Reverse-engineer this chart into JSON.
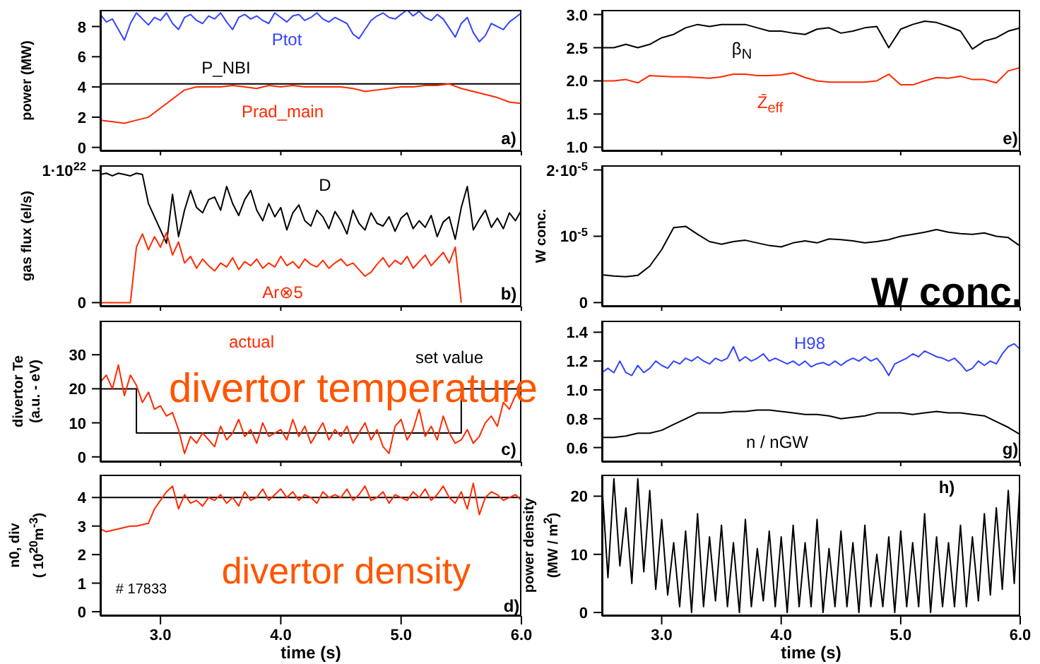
{
  "chart_data": [
    {
      "type": "line",
      "ylabel": "power (MW)",
      "x": [
        2.5,
        2.55,
        2.6,
        2.65,
        2.7,
        2.75,
        2.8,
        2.85,
        2.9,
        2.95,
        3.0,
        3.05,
        3.1,
        3.15,
        3.2,
        3.25,
        3.3,
        3.35,
        3.4,
        3.45,
        3.5,
        3.55,
        3.6,
        3.65,
        3.7,
        3.75,
        3.8,
        3.85,
        3.9,
        3.95,
        4.0,
        4.05,
        4.1,
        4.15,
        4.2,
        4.25,
        4.3,
        4.35,
        4.4,
        4.45,
        4.5,
        4.55,
        4.6,
        4.65,
        4.7,
        4.75,
        4.8,
        4.85,
        4.9,
        4.95,
        5.0,
        5.05,
        5.1,
        5.15,
        5.2,
        5.25,
        5.3,
        5.35,
        5.4,
        5.45,
        5.5,
        5.55,
        5.6,
        5.65,
        5.7,
        5.75,
        5.8,
        5.85,
        5.9,
        5.95,
        6.0
      ],
      "xlim": [
        2.5,
        6.0
      ],
      "xticks": [
        3,
        4,
        5,
        6
      ],
      "ylim": [
        -0.25,
        9.1
      ],
      "yticks": [
        0,
        2,
        4,
        6,
        8
      ],
      "tick_labels": "y",
      "annotations": [
        "a)"
      ],
      "series": [
        {
          "name": "Ptot",
          "color": "#3344ff",
          "values": [
            8.8,
            8.3,
            8.5,
            7.8,
            7.1,
            8.2,
            8.9,
            8.5,
            8.1,
            8.6,
            8.4,
            8.9,
            8.2,
            7.8,
            8.6,
            8.8,
            8.4,
            8.2,
            8.7,
            8.5,
            8.9,
            8.3,
            7.8,
            8.6,
            8.8,
            8.5,
            8.7,
            8.4,
            8.2,
            8.9,
            8.6,
            8.3,
            8.7,
            8.8,
            8.4,
            8.6,
            8.9,
            8.5,
            8.3,
            8.6,
            8.4,
            8.2,
            7.5,
            7.2,
            7.8,
            8.4,
            8.7,
            8.9,
            8.6,
            8.5,
            8.8,
            9.1,
            8.7,
            9.0,
            8.6,
            8.4,
            8.8,
            8.5,
            7.9,
            7.3,
            8.2,
            8.6,
            7.6,
            7.0,
            7.4,
            8.2,
            8.0,
            7.8,
            8.3,
            8.6,
            8.9
          ]
        },
        {
          "name": "P_NBI",
          "color": "#000000",
          "x": [
            2.5,
            6.0
          ],
          "values": [
            4.2,
            4.2
          ]
        },
        {
          "name": "Prad_main",
          "color": "#ff2a00",
          "x": [
            2.5,
            2.6,
            2.7,
            2.8,
            2.9,
            3.0,
            3.1,
            3.2,
            3.3,
            3.4,
            3.5,
            3.6,
            3.7,
            3.8,
            3.9,
            4.0,
            4.1,
            4.2,
            4.3,
            4.4,
            4.5,
            4.6,
            4.7,
            4.8,
            4.9,
            5.0,
            5.1,
            5.2,
            5.3,
            5.4,
            5.5,
            5.6,
            5.7,
            5.8,
            5.9,
            6.0
          ],
          "values": [
            1.8,
            1.7,
            1.6,
            1.8,
            2.0,
            2.6,
            3.2,
            3.8,
            4.0,
            4.0,
            4.0,
            4.1,
            4.0,
            3.9,
            4.1,
            4.0,
            4.1,
            4.0,
            4.0,
            4.0,
            4.0,
            3.9,
            3.7,
            3.8,
            3.9,
            4.0,
            4.0,
            4.1,
            4.1,
            4.2,
            3.9,
            3.7,
            3.5,
            3.3,
            3.0,
            2.9
          ]
        }
      ]
    },
    {
      "type": "line",
      "ylabel": "gas flux (el/s)",
      "x": [
        2.5,
        2.55,
        2.6,
        2.65,
        2.7,
        2.75,
        2.8,
        2.85,
        2.9,
        2.95,
        3.0,
        3.05,
        3.1,
        3.15,
        3.2,
        3.25,
        3.3,
        3.35,
        3.4,
        3.45,
        3.5,
        3.55,
        3.6,
        3.65,
        3.7,
        3.75,
        3.8,
        3.85,
        3.9,
        3.95,
        4.0,
        4.05,
        4.1,
        4.15,
        4.2,
        4.25,
        4.3,
        4.35,
        4.4,
        4.45,
        4.5,
        4.55,
        4.6,
        4.65,
        4.7,
        4.75,
        4.8,
        4.85,
        4.9,
        4.95,
        5.0,
        5.05,
        5.1,
        5.15,
        5.2,
        5.25,
        5.3,
        5.35,
        5.4,
        5.45,
        5.5,
        5.55,
        5.6,
        5.65,
        5.7,
        5.75,
        5.8,
        5.85,
        5.9,
        5.95,
        6.0
      ],
      "xlim": [
        2.5,
        6.0
      ],
      "xticks": [
        3,
        4,
        5,
        6
      ],
      "ylim": [
        -3e+20,
        1.04e+22
      ],
      "yticks": [
        0,
        {
          "value": 1e+22,
          "label": "1·10$^{22}$"
        }
      ],
      "tick_labels": "y",
      "annotations": [
        "b)"
      ],
      "series": [
        {
          "name": "D",
          "color": "#000000",
          "values": [
            9.7e+21,
            9.8e+21,
            9.6e+21,
            9.8e+21,
            9.7e+21,
            9.6e+21,
            9.8e+21,
            9.7e+21,
            7.5e+21,
            6.5e+21,
            5.5e+21,
            4.5e+21,
            8.2e+21,
            5e+21,
            7e+21,
            8.5e+21,
            7.2e+21,
            6.8e+21,
            7.8e+21,
            8e+21,
            7e+21,
            8.8e+21,
            7.5e+21,
            6.6e+21,
            7.8e+21,
            8.5e+21,
            7e+21,
            6.2e+21,
            7.5e+21,
            6.5e+21,
            7.2e+21,
            5.5e+21,
            6.8e+21,
            7.4e+21,
            6.2e+21,
            5.8e+21,
            7e+21,
            6.5e+21,
            5.6e+21,
            6.9e+21,
            6.2e+21,
            5.2e+21,
            7e+21,
            6e+21,
            5.5e+21,
            6.8e+21,
            6e+21,
            5.8e+21,
            6.5e+21,
            5.4e+21,
            6.4e+21,
            6.8e+21,
            5.6e+21,
            6.2e+21,
            5.7e+21,
            6.6e+21,
            5e+21,
            6.1e+21,
            6.5e+21,
            4.8e+21,
            7.2e+21,
            8.8e+21,
            5.5e+21,
            6.3e+21,
            7e+21,
            5.7e+21,
            6.4e+21,
            5.6e+21,
            6.8e+21,
            6.2e+21,
            7e+21
          ]
        },
        {
          "name": "Ar⊗5",
          "color": "#ff2a00",
          "values": [
            0,
            0,
            0,
            0,
            0,
            0,
            4.2e+21,
            5.2e+21,
            4e+21,
            5e+21,
            4.2e+21,
            5.3e+21,
            3.6e+21,
            4.6e+21,
            3e+21,
            3.5e+21,
            2.6e+21,
            3.3e+21,
            2.8e+21,
            2.4e+21,
            3e+21,
            2.7e+21,
            3.4e+21,
            2.5e+21,
            3.1e+21,
            2.8e+21,
            3.3e+21,
            2.6e+21,
            3e+21,
            2.7e+21,
            3.5e+21,
            2.8e+21,
            3.1e+21,
            2.6e+21,
            3.3e+21,
            2.9e+21,
            2.7e+21,
            3.2e+21,
            2.6e+21,
            3e+21,
            3.3e+21,
            2.8e+21,
            3e+21,
            2.5e+21,
            2e+21,
            2.3e+21,
            2.9e+21,
            3.4e+21,
            2.7e+21,
            3.2e+21,
            2.9e+21,
            3.5e+21,
            2.6e+21,
            3.1e+21,
            3.6e+21,
            2.8e+21,
            3.3e+21,
            3.8e+21,
            3e+21,
            4.2e+21,
            0,
            null,
            null,
            null,
            null,
            null,
            null,
            null,
            null,
            null,
            null
          ]
        }
      ]
    },
    {
      "type": "line",
      "ylabel": "divertor Te\n(a.u. - eV)",
      "x": [
        2.5,
        2.55,
        2.6,
        2.65,
        2.7,
        2.75,
        2.8,
        2.85,
        2.9,
        2.95,
        3.0,
        3.05,
        3.1,
        3.15,
        3.2,
        3.25,
        3.3,
        3.35,
        3.4,
        3.45,
        3.5,
        3.55,
        3.6,
        3.65,
        3.7,
        3.75,
        3.8,
        3.85,
        3.9,
        3.95,
        4.0,
        4.05,
        4.1,
        4.15,
        4.2,
        4.25,
        4.3,
        4.35,
        4.4,
        4.45,
        4.5,
        4.55,
        4.6,
        4.65,
        4.7,
        4.75,
        4.8,
        4.85,
        4.9,
        4.95,
        5.0,
        5.05,
        5.1,
        5.15,
        5.2,
        5.25,
        5.3,
        5.35,
        5.4,
        5.45,
        5.5,
        5.55,
        5.6,
        5.65,
        5.7,
        5.75,
        5.8,
        5.85,
        5.9,
        5.95,
        6.0
      ],
      "xlim": [
        2.5,
        6.0
      ],
      "xticks": [
        3,
        4,
        5,
        6
      ],
      "ylim": [
        -1.5,
        40
      ],
      "yticks": [
        0,
        10,
        20,
        30
      ],
      "tick_labels": "y",
      "annotations": [
        "divertor temperature",
        "c)"
      ],
      "series": [
        {
          "name": "set value",
          "color": "#000000",
          "x": [
            2.5,
            2.8,
            2.8,
            5.5,
            5.5,
            6.0
          ],
          "values": [
            20,
            20,
            7,
            7,
            20,
            20
          ]
        },
        {
          "name": "actual",
          "color": "#ff2a00",
          "values": [
            22,
            24,
            20,
            27,
            18,
            24,
            21,
            16,
            19,
            14,
            15,
            12,
            13,
            8,
            1,
            6,
            4,
            7,
            5,
            3,
            9,
            5,
            7,
            11,
            6,
            8,
            4,
            10,
            6,
            7,
            8,
            5,
            11,
            6,
            9,
            4,
            7,
            10,
            5,
            8,
            6,
            9,
            4,
            7,
            10,
            5,
            8,
            3,
            1,
            9,
            11,
            5,
            8,
            14,
            6,
            9,
            5,
            12,
            7,
            4,
            5,
            8,
            4,
            6,
            10,
            12,
            9,
            16,
            14,
            18,
            20
          ]
        }
      ]
    },
    {
      "type": "line",
      "ylabel": "n0, div\n( 10$^{20}$m$^{-3}$)",
      "xlabel": "time (s)",
      "x": [
        2.5,
        2.55,
        2.6,
        2.65,
        2.7,
        2.75,
        2.8,
        2.85,
        2.9,
        2.95,
        3.0,
        3.05,
        3.1,
        3.15,
        3.2,
        3.25,
        3.3,
        3.35,
        3.4,
        3.45,
        3.5,
        3.55,
        3.6,
        3.65,
        3.7,
        3.75,
        3.8,
        3.85,
        3.9,
        3.95,
        4.0,
        4.05,
        4.1,
        4.15,
        4.2,
        4.25,
        4.3,
        4.35,
        4.4,
        4.45,
        4.5,
        4.55,
        4.6,
        4.65,
        4.7,
        4.75,
        4.8,
        4.85,
        4.9,
        4.95,
        5.0,
        5.05,
        5.1,
        5.15,
        5.2,
        5.25,
        5.3,
        5.35,
        5.4,
        5.45,
        5.5,
        5.55,
        5.6,
        5.65,
        5.7,
        5.75,
        5.8,
        5.85,
        5.9,
        5.95,
        6.0
      ],
      "xlim": [
        2.5,
        6.0
      ],
      "xticks": [
        {
          "value": 3.0,
          "label": "3.0"
        },
        {
          "value": 4.0,
          "label": "4.0"
        },
        {
          "value": 5.0,
          "label": "5.0"
        },
        {
          "value": 6.0,
          "label": "6.0"
        }
      ],
      "ylim": [
        -0.15,
        4.8
      ],
      "yticks": [
        0,
        1,
        2,
        3,
        4
      ],
      "annotations": [
        "# 17833",
        "divertor density",
        "d)"
      ],
      "ref_lines": [
        {
          "axis": "y",
          "value": 4,
          "color": "#000000"
        }
      ],
      "series": [
        {
          "color": "#ff2a00",
          "values": [
            2.9,
            2.8,
            2.85,
            2.9,
            2.95,
            3.0,
            3.0,
            3.05,
            3.1,
            3.6,
            3.9,
            4.2,
            4.4,
            3.6,
            4.1,
            3.8,
            3.9,
            3.7,
            4.0,
            3.9,
            4.1,
            3.8,
            4.0,
            3.7,
            4.2,
            3.9,
            4.0,
            4.3,
            3.9,
            4.1,
            4.3,
            4.0,
            4.2,
            3.9,
            4.1,
            4.0,
            3.8,
            4.2,
            4.0,
            4.1,
            4.0,
            4.3,
            3.9,
            4.1,
            4.4,
            3.9,
            4.0,
            4.2,
            3.8,
            4.1,
            4.0,
            3.9,
            4.2,
            4.0,
            4.3,
            3.9,
            4.1,
            4.4,
            4.0,
            3.8,
            4.2,
            3.6,
            4.5,
            3.4,
            4.0,
            4.2,
            4.1,
            3.9,
            4.0,
            4.1,
            3.9
          ]
        }
      ]
    },
    {
      "type": "line",
      "x": [
        2.5,
        2.6,
        2.7,
        2.8,
        2.9,
        3.0,
        3.1,
        3.2,
        3.3,
        3.4,
        3.5,
        3.6,
        3.7,
        3.8,
        3.9,
        4.0,
        4.1,
        4.2,
        4.3,
        4.4,
        4.5,
        4.6,
        4.7,
        4.8,
        4.9,
        5.0,
        5.1,
        5.2,
        5.3,
        5.4,
        5.5,
        5.6,
        5.7,
        5.8,
        5.9,
        6.0
      ],
      "xlim": [
        2.5,
        6.0
      ],
      "xticks": [
        3,
        4,
        5,
        6
      ],
      "ylim": [
        0.94,
        3.07
      ],
      "yticks": [
        {
          "value": 1.0,
          "label": "1.0"
        },
        1.5,
        {
          "value": 2.0,
          "label": "2.0"
        },
        2.5,
        {
          "value": 3.0,
          "label": "3.0"
        }
      ],
      "tick_labels": "y",
      "annotations": [
        "e)"
      ],
      "series": [
        {
          "name": "β$_{N}$",
          "color": "#000000",
          "values": [
            2.5,
            2.5,
            2.55,
            2.5,
            2.55,
            2.65,
            2.7,
            2.8,
            2.85,
            2.82,
            2.85,
            2.85,
            2.85,
            2.8,
            2.75,
            2.75,
            2.72,
            2.7,
            2.78,
            2.8,
            2.72,
            2.75,
            2.8,
            2.82,
            2.5,
            2.78,
            2.85,
            2.9,
            2.88,
            2.82,
            2.75,
            2.48,
            2.6,
            2.65,
            2.75,
            2.8
          ]
        },
        {
          "name": "Z̄$_{eff}$",
          "color": "#ff2a00",
          "values": [
            2.0,
            2.0,
            2.02,
            1.97,
            2.08,
            2.07,
            2.06,
            2.06,
            2.05,
            2.04,
            2.06,
            2.1,
            2.1,
            2.08,
            2.08,
            2.09,
            2.12,
            2.05,
            2.0,
            1.98,
            1.98,
            1.98,
            1.98,
            2.0,
            2.1,
            1.94,
            1.94,
            2.0,
            2.05,
            2.04,
            2.07,
            2.02,
            2.02,
            1.97,
            2.15,
            2.2
          ]
        }
      ]
    },
    {
      "type": "line",
      "ylabel": "W conc.",
      "x": [
        2.5,
        2.6,
        2.7,
        2.8,
        2.9,
        3.0,
        3.1,
        3.2,
        3.3,
        3.4,
        3.5,
        3.6,
        3.7,
        3.8,
        3.9,
        4.0,
        4.1,
        4.2,
        4.3,
        4.4,
        4.5,
        4.6,
        4.7,
        4.8,
        4.9,
        5.0,
        5.1,
        5.2,
        5.3,
        5.4,
        5.5,
        5.6,
        5.7,
        5.8,
        5.9,
        6.0
      ],
      "xlim": [
        2.5,
        6.0
      ],
      "xticks": [
        3,
        4,
        5,
        6
      ],
      "ylim": [
        -6e-07,
        2.07e-05
      ],
      "yticks": [
        0,
        {
          "value": 1e-05,
          "label": "10$^{-5}$"
        },
        {
          "value": 2e-05,
          "label": "2·10$^{-5}$"
        }
      ],
      "tick_labels": "y",
      "annotations": [
        "W conc."
      ],
      "series": [
        {
          "color": "#000000",
          "values": [
            4.2e-06,
            4e-06,
            3.9e-06,
            4.1e-06,
            5.5e-06,
            8e-06,
            1.13e-05,
            1.15e-05,
            1.03e-05,
            9.2e-06,
            8.8e-06,
            9.2e-06,
            9.4e-06,
            9e-06,
            8.6e-06,
            8.4e-06,
            9e-06,
            9.3e-06,
            9e-06,
            9.6e-06,
            9.5e-06,
            9.3e-06,
            9e-06,
            9.2e-06,
            9.5e-06,
            1e-05,
            1.03e-05,
            1.06e-05,
            1.1e-05,
            1.06e-05,
            1.04e-05,
            1.03e-05,
            1.05e-05,
            1e-05,
            9.8e-06,
            8.5e-06
          ]
        }
      ]
    },
    {
      "type": "line",
      "x": [
        2.5,
        2.55,
        2.6,
        2.65,
        2.7,
        2.75,
        2.8,
        2.85,
        2.9,
        2.95,
        3.0,
        3.05,
        3.1,
        3.15,
        3.2,
        3.25,
        3.3,
        3.35,
        3.4,
        3.45,
        3.5,
        3.55,
        3.6,
        3.65,
        3.7,
        3.75,
        3.8,
        3.85,
        3.9,
        3.95,
        4.0,
        4.05,
        4.1,
        4.15,
        4.2,
        4.25,
        4.3,
        4.35,
        4.4,
        4.45,
        4.5,
        4.55,
        4.6,
        4.65,
        4.7,
        4.75,
        4.8,
        4.85,
        4.9,
        4.95,
        5.0,
        5.05,
        5.1,
        5.15,
        5.2,
        5.25,
        5.3,
        5.35,
        5.4,
        5.45,
        5.5,
        5.55,
        5.6,
        5.65,
        5.7,
        5.75,
        5.8,
        5.85,
        5.9,
        5.95,
        6.0
      ],
      "xlim": [
        2.5,
        6.0
      ],
      "xticks": [
        3,
        4,
        5,
        6
      ],
      "ylim": [
        0.5,
        1.48
      ],
      "yticks": [
        0.6,
        0.8,
        {
          "value": 1.0,
          "label": "1.0"
        },
        1.2,
        1.4
      ],
      "tick_labels": "y",
      "annotations": [
        "g)"
      ],
      "series": [
        {
          "name": "H98",
          "color": "#3344ff",
          "values": [
            1.12,
            1.15,
            1.12,
            1.2,
            1.12,
            1.1,
            1.17,
            1.12,
            1.15,
            1.2,
            1.17,
            1.15,
            1.2,
            1.18,
            1.22,
            1.2,
            1.23,
            1.2,
            1.18,
            1.22,
            1.2,
            1.22,
            1.3,
            1.2,
            1.23,
            1.2,
            1.22,
            1.25,
            1.2,
            1.22,
            1.2,
            1.18,
            1.2,
            1.17,
            1.2,
            1.16,
            1.18,
            1.19,
            1.17,
            1.2,
            1.17,
            1.2,
            1.22,
            1.2,
            1.23,
            1.2,
            1.22,
            1.17,
            1.1,
            1.18,
            1.2,
            1.22,
            1.25,
            1.23,
            1.27,
            1.25,
            1.23,
            1.22,
            1.2,
            1.22,
            1.18,
            1.13,
            1.15,
            1.2,
            1.17,
            1.2,
            1.18,
            1.25,
            1.3,
            1.32,
            1.28
          ]
        },
        {
          "name": "n / nGW",
          "color": "#000000",
          "x": [
            2.5,
            2.6,
            2.7,
            2.8,
            2.9,
            3.0,
            3.1,
            3.2,
            3.3,
            3.4,
            3.5,
            3.6,
            3.7,
            3.8,
            3.9,
            4.0,
            4.1,
            4.2,
            4.3,
            4.4,
            4.5,
            4.6,
            4.7,
            4.8,
            4.9,
            5.0,
            5.1,
            5.2,
            5.3,
            5.4,
            5.5,
            5.6,
            5.7,
            5.8,
            5.9,
            6.0
          ],
          "values": [
            0.67,
            0.67,
            0.68,
            0.7,
            0.7,
            0.72,
            0.76,
            0.8,
            0.84,
            0.84,
            0.84,
            0.85,
            0.85,
            0.86,
            0.86,
            0.85,
            0.84,
            0.83,
            0.83,
            0.82,
            0.8,
            0.81,
            0.82,
            0.84,
            0.84,
            0.84,
            0.83,
            0.84,
            0.85,
            0.84,
            0.84,
            0.83,
            0.82,
            0.78,
            0.74,
            0.69
          ]
        }
      ]
    },
    {
      "type": "line",
      "ylabel": "power density\n(MW / m$^{2}$)",
      "xlabel": "time (s)",
      "x": [
        2.5,
        2.55,
        2.6,
        2.65,
        2.7,
        2.75,
        2.8,
        2.85,
        2.9,
        2.95,
        3.0,
        3.05,
        3.1,
        3.15,
        3.2,
        3.25,
        3.3,
        3.35,
        3.4,
        3.45,
        3.5,
        3.55,
        3.6,
        3.65,
        3.7,
        3.75,
        3.8,
        3.85,
        3.9,
        3.95,
        4.0,
        4.05,
        4.1,
        4.15,
        4.2,
        4.25,
        4.3,
        4.35,
        4.4,
        4.45,
        4.5,
        4.55,
        4.6,
        4.65,
        4.7,
        4.75,
        4.8,
        4.85,
        4.9,
        4.95,
        5.0,
        5.05,
        5.1,
        5.15,
        5.2,
        5.25,
        5.3,
        5.35,
        5.4,
        5.45,
        5.5,
        5.55,
        5.6,
        5.65,
        5.7,
        5.75,
        5.8,
        5.85,
        5.9,
        5.95,
        6.0
      ],
      "xlim": [
        2.5,
        6.0
      ],
      "xticks": [
        {
          "value": 3.0,
          "label": "3.0"
        },
        {
          "value": 4.0,
          "label": "4.0"
        },
        {
          "value": 5.0,
          "label": "5.0"
        },
        {
          "value": 6.0,
          "label": "6.0"
        }
      ],
      "ylim": [
        -0.6,
        23.7
      ],
      "yticks": [
        0,
        10,
        20
      ],
      "annotations": [
        "h)"
      ],
      "series": [
        {
          "color": "#000000",
          "values": [
            22,
            6,
            23,
            8,
            18,
            5,
            23,
            7,
            21,
            4,
            16,
            3,
            12,
            1,
            14,
            0,
            17,
            1,
            13,
            2,
            15,
            1,
            12,
            0,
            16,
            1,
            11,
            2,
            14,
            1,
            13,
            0,
            15,
            1,
            12,
            1,
            16,
            0,
            11,
            1,
            14,
            1,
            12,
            0,
            15,
            1,
            10,
            1,
            13,
            0,
            14,
            1,
            12,
            1,
            17,
            0,
            13,
            1,
            12,
            1,
            15,
            1,
            13,
            2,
            17,
            3,
            18,
            4,
            21,
            5,
            23
          ]
        }
      ]
    }
  ]
}
